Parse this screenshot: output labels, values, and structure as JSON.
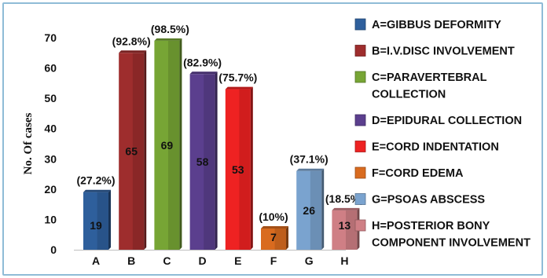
{
  "chart_data": {
    "type": "bar",
    "categories": [
      "A",
      "B",
      "C",
      "D",
      "E",
      "F",
      "G",
      "H"
    ],
    "values": [
      19,
      65,
      69,
      58,
      53,
      7,
      26,
      13
    ],
    "percent_labels": [
      "(27.2%)",
      "(92.8%)",
      "(98.5%)",
      "(82.9%)",
      "(75.7%)",
      "(10%)",
      "(37.1%)",
      "(18.5%)"
    ],
    "colors": [
      "#2e5f9c",
      "#9e2d2d",
      "#77a535",
      "#5b3f8e",
      "#ee2222",
      "#d96b1f",
      "#7aa3cf",
      "#cf7f85"
    ],
    "ylabel": "No. Of cases",
    "ylim": [
      0,
      70
    ],
    "yticks": [
      0,
      10,
      20,
      30,
      40,
      50,
      60,
      70
    ],
    "grid": false,
    "legend_position": "right",
    "legend": [
      "A=GIBBUS DEFORMITY",
      "B=I.V.DISC INVOLVEMENT",
      "C=PARAVERTEBRAL COLLECTION",
      "D=EPIDURAL COLLECTION",
      "E=CORD INDENTATION",
      "F=CORD EDEMA",
      "G=PSOAS ABSCESS",
      "H=POSTERIOR BONY COMPONENT INVOLVEMENT"
    ]
  }
}
